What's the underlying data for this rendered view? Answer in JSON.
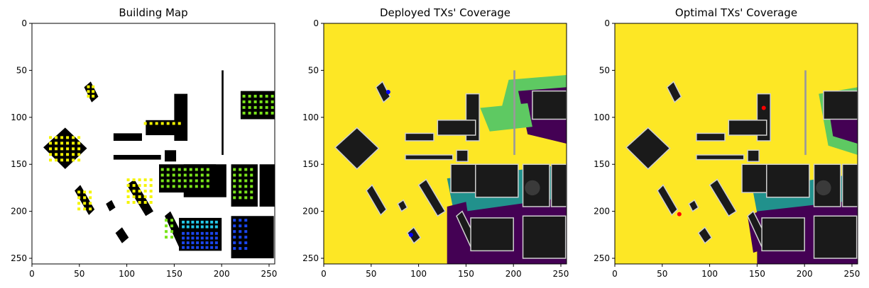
{
  "chart_data": [
    {
      "type": "heatmap",
      "title": "Building Map",
      "xlabel": "",
      "ylabel": "",
      "xlim": [
        0,
        256
      ],
      "ylim": [
        256,
        0
      ],
      "x_ticks": [
        0,
        50,
        100,
        150,
        200,
        250
      ],
      "y_ticks": [
        0,
        50,
        100,
        150,
        200,
        250
      ],
      "grid": false,
      "colormap": [
        "#ffffff",
        "#000000",
        "#f5f500",
        "#7ae51a",
        "#23c8e8",
        "#1a46f0"
      ]
    },
    {
      "type": "heatmap",
      "title": "Deployed TXs' Coverage",
      "xlabel": "",
      "ylabel": "",
      "xlim": [
        0,
        256
      ],
      "ylim": [
        256,
        0
      ],
      "x_ticks": [
        0,
        50,
        100,
        150,
        200,
        250
      ],
      "y_ticks": [
        0,
        50,
        100,
        150,
        200,
        250
      ],
      "grid": false,
      "colormap": [
        "#fde725",
        "#5ec962",
        "#21918c",
        "#440154",
        "#1a1a1a"
      ],
      "tx_markers": [
        {
          "x": 68,
          "y": 73,
          "color": "#0000ff"
        },
        {
          "x": 92,
          "y": 225,
          "color": "#0000ff"
        }
      ]
    },
    {
      "type": "heatmap",
      "title": "Optimal TXs' Coverage",
      "xlabel": "",
      "ylabel": "",
      "xlim": [
        0,
        256
      ],
      "ylim": [
        256,
        0
      ],
      "x_ticks": [
        0,
        50,
        100,
        150,
        200,
        250
      ],
      "y_ticks": [
        0,
        50,
        100,
        150,
        200,
        250
      ],
      "grid": false,
      "colormap": [
        "#fde725",
        "#5ec962",
        "#21918c",
        "#440154",
        "#1a1a1a"
      ],
      "tx_markers": [
        {
          "x": 157,
          "y": 90,
          "color": "#ff0000"
        },
        {
          "x": 68,
          "y": 203,
          "color": "#ff0000"
        }
      ]
    }
  ]
}
